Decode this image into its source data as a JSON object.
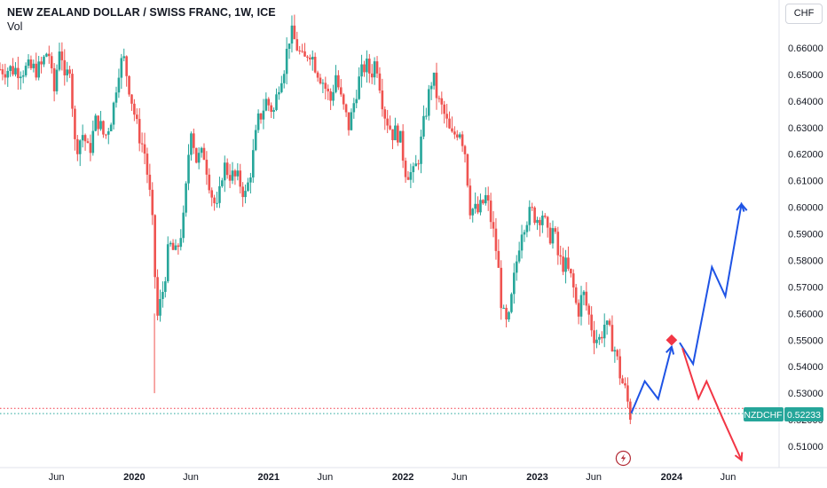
{
  "header": {
    "title": "NEW ZEALAND DOLLAR / SWISS FRANC, 1W, ICE",
    "volume_label": "Vol",
    "currency_button": "CHF"
  },
  "price_label": {
    "symbol": "NZDCHF",
    "value": "0.52233",
    "color": "#26a69a"
  },
  "colors": {
    "up": "#26a69a",
    "down": "#ef5350",
    "bullish_projection": "#1e53e5",
    "bearish_projection": "#f23645",
    "marker": "#f23645"
  },
  "chart_data": {
    "type": "candlestick",
    "symbol": "NZDCHF",
    "timeframe": "1W",
    "ylim": [
      0.5035,
      0.6745
    ],
    "y_ticks": [
      "0.66000",
      "0.65000",
      "0.64000",
      "0.63000",
      "0.62000",
      "0.61000",
      "0.60000",
      "0.59000",
      "0.58000",
      "0.57000",
      "0.56000",
      "0.55000",
      "0.54000",
      "0.53000",
      "0.52000",
      "0.51000"
    ],
    "x_ticks": [
      {
        "label": "Jun",
        "x": 2019.42,
        "bold": false
      },
      {
        "label": "2020",
        "x": 2020.0,
        "bold": true
      },
      {
        "label": "Jun",
        "x": 2020.42,
        "bold": false
      },
      {
        "label": "2021",
        "x": 2021.0,
        "bold": true
      },
      {
        "label": "Jun",
        "x": 2021.42,
        "bold": false
      },
      {
        "label": "2022",
        "x": 2022.0,
        "bold": true
      },
      {
        "label": "Jun",
        "x": 2022.42,
        "bold": false
      },
      {
        "label": "2023",
        "x": 2023.0,
        "bold": true
      },
      {
        "label": "Jun",
        "x": 2023.42,
        "bold": false
      },
      {
        "label": "2024",
        "x": 2024.0,
        "bold": true
      },
      {
        "label": "Jun",
        "x": 2024.42,
        "bold": false
      }
    ],
    "close_path": [
      [
        2019.3,
        0.652
      ],
      [
        2019.36,
        0.66
      ],
      [
        2019.4,
        0.642
      ],
      [
        2019.45,
        0.664
      ],
      [
        2019.48,
        0.646
      ],
      [
        2019.52,
        0.654
      ],
      [
        2019.56,
        0.622
      ],
      [
        2019.62,
        0.628
      ],
      [
        2019.66,
        0.62
      ],
      [
        2019.72,
        0.634
      ],
      [
        2019.78,
        0.626
      ],
      [
        2019.84,
        0.636
      ],
      [
        2019.88,
        0.652
      ],
      [
        2019.92,
        0.656
      ],
      [
        2019.96,
        0.646
      ],
      [
        2020.02,
        0.63
      ],
      [
        2020.08,
        0.62
      ],
      [
        2020.13,
        0.598
      ],
      [
        2020.17,
        0.558
      ],
      [
        2020.21,
        0.568
      ],
      [
        2020.26,
        0.586
      ],
      [
        2020.31,
        0.582
      ],
      [
        2020.37,
        0.596
      ],
      [
        2020.42,
        0.632
      ],
      [
        2020.46,
        0.618
      ],
      [
        2020.52,
        0.62
      ],
      [
        2020.58,
        0.604
      ],
      [
        2020.62,
        0.598
      ],
      [
        2020.66,
        0.616
      ],
      [
        2020.72,
        0.612
      ],
      [
        2020.78,
        0.61
      ],
      [
        2020.83,
        0.604
      ],
      [
        2020.88,
        0.618
      ],
      [
        2020.92,
        0.632
      ],
      [
        2020.98,
        0.64
      ],
      [
        2021.04,
        0.636
      ],
      [
        2021.08,
        0.648
      ],
      [
        2021.12,
        0.654
      ],
      [
        2021.16,
        0.666
      ],
      [
        2021.2,
        0.662
      ],
      [
        2021.26,
        0.654
      ],
      [
        2021.3,
        0.66
      ],
      [
        2021.36,
        0.652
      ],
      [
        2021.4,
        0.648
      ],
      [
        2021.46,
        0.64
      ],
      [
        2021.5,
        0.65
      ],
      [
        2021.54,
        0.64
      ],
      [
        2021.6,
        0.63
      ],
      [
        2021.66,
        0.646
      ],
      [
        2021.72,
        0.654
      ],
      [
        2021.76,
        0.65
      ],
      [
        2021.8,
        0.656
      ],
      [
        2021.86,
        0.636
      ],
      [
        2021.92,
        0.628
      ],
      [
        2021.97,
        0.628
      ],
      [
        2022.02,
        0.614
      ],
      [
        2022.08,
        0.612
      ],
      [
        2022.12,
        0.62
      ],
      [
        2022.17,
        0.636
      ],
      [
        2022.22,
        0.65
      ],
      [
        2022.26,
        0.64
      ],
      [
        2022.3,
        0.636
      ],
      [
        2022.36,
        0.626
      ],
      [
        2022.42,
        0.63
      ],
      [
        2022.46,
        0.622
      ],
      [
        2022.5,
        0.6
      ],
      [
        2022.56,
        0.598
      ],
      [
        2022.62,
        0.604
      ],
      [
        2022.66,
        0.594
      ],
      [
        2022.7,
        0.582
      ],
      [
        2022.74,
        0.56
      ],
      [
        2022.78,
        0.554
      ],
      [
        2022.83,
        0.574
      ],
      [
        2022.88,
        0.592
      ],
      [
        2022.92,
        0.596
      ],
      [
        2022.96,
        0.598
      ],
      [
        2023.0,
        0.596
      ],
      [
        2023.04,
        0.598
      ],
      [
        2023.08,
        0.588
      ],
      [
        2023.12,
        0.592
      ],
      [
        2023.16,
        0.58
      ],
      [
        2023.21,
        0.578
      ],
      [
        2023.26,
        0.572
      ],
      [
        2023.3,
        0.56
      ],
      [
        2023.34,
        0.568
      ],
      [
        2023.38,
        0.56
      ],
      [
        2023.42,
        0.552
      ],
      [
        2023.46,
        0.55
      ],
      [
        2023.5,
        0.556
      ],
      [
        2023.54,
        0.552
      ],
      [
        2023.58,
        0.546
      ],
      [
        2023.62,
        0.536
      ],
      [
        2023.66,
        0.53
      ],
      [
        2023.69,
        0.522
      ]
    ],
    "pre_lines": [
      {
        "name": "red dotted",
        "value": 0.5243,
        "color": "#f23645"
      },
      {
        "name": "green dotted",
        "value": 0.5223,
        "color": "#26a69a"
      }
    ],
    "annotations": {
      "bullish_projection": [
        [
          2023.7,
          0.5225
        ],
        [
          2023.8,
          0.5345
        ],
        [
          2023.9,
          0.5278
        ],
        [
          2024.0,
          0.5475
        ],
        [
          2024.06,
          0.549
        ],
        [
          2024.16,
          0.541
        ],
        [
          2024.3,
          0.5775
        ],
        [
          2024.4,
          0.5665
        ],
        [
          2024.52,
          0.6012
        ],
        [
          2024.56,
          0.5988
        ]
      ],
      "bearish_projection": [
        [
          2024.08,
          0.547
        ],
        [
          2024.2,
          0.528
        ],
        [
          2024.26,
          0.5345
        ],
        [
          2024.38,
          0.5205
        ],
        [
          2024.52,
          0.5048
        ]
      ],
      "marker": {
        "x": 2024.0,
        "y": 0.55
      },
      "event_icon": {
        "x": 2023.64,
        "y": 0.5055
      }
    }
  }
}
